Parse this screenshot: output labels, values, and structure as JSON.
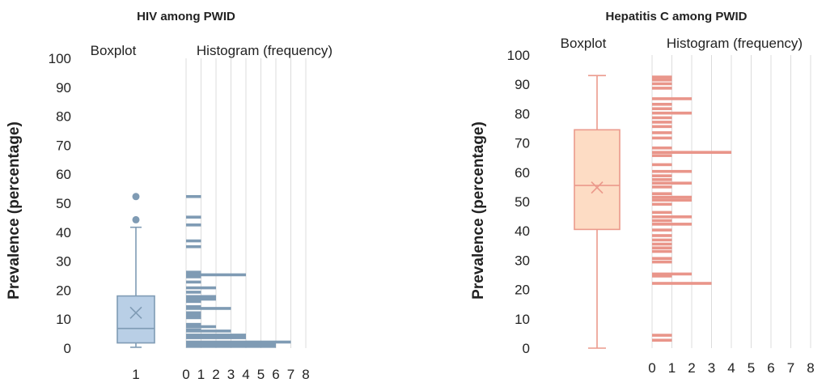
{
  "chart_data": [
    {
      "type": "box+histogram",
      "title": "HIV among PWID",
      "ylabel": "Prevalence (percentage)",
      "boxplot_label": "Boxplot",
      "histogram_label": "Histogram (frequency)",
      "ylim": [
        0,
        100
      ],
      "y_ticks": [
        "0",
        "10",
        "20",
        "30",
        "40",
        "50",
        "60",
        "70",
        "80",
        "90",
        "100"
      ],
      "box_x_tick": "1",
      "hist_x_ticks": [
        "0",
        "1",
        "2",
        "3",
        "4",
        "5",
        "6",
        "7",
        "8"
      ],
      "hist_xlim": [
        0,
        8
      ],
      "colors": {
        "box_fill": "#b9cfe6",
        "stroke": "#7f9bb4",
        "hist": "#7f9bb4"
      },
      "box": {
        "min": 0.3,
        "q1": 1.8,
        "median": 6.8,
        "q3": 18,
        "max": 41.7,
        "mean": 12.2,
        "outliers": [
          44.3,
          52.3
        ]
      },
      "histogram": [
        {
          "y": 52.3,
          "f": 1
        },
        {
          "y": 45.2,
          "f": 1
        },
        {
          "y": 42.5,
          "f": 1
        },
        {
          "y": 37,
          "f": 1
        },
        {
          "y": 35,
          "f": 1
        },
        {
          "y": 26.2,
          "f": 1
        },
        {
          "y": 25.3,
          "f": 4
        },
        {
          "y": 24.6,
          "f": 1
        },
        {
          "y": 22.8,
          "f": 1
        },
        {
          "y": 20.8,
          "f": 2
        },
        {
          "y": 19.3,
          "f": 1
        },
        {
          "y": 17.8,
          "f": 2
        },
        {
          "y": 16.9,
          "f": 2
        },
        {
          "y": 16.1,
          "f": 1
        },
        {
          "y": 14.3,
          "f": 1
        },
        {
          "y": 13.7,
          "f": 3
        },
        {
          "y": 12.2,
          "f": 1
        },
        {
          "y": 11.3,
          "f": 1
        },
        {
          "y": 10.5,
          "f": 1
        },
        {
          "y": 8.2,
          "f": 1
        },
        {
          "y": 7.4,
          "f": 2
        },
        {
          "y": 6.3,
          "f": 1
        },
        {
          "y": 5.9,
          "f": 3
        },
        {
          "y": 4.5,
          "f": 4
        },
        {
          "y": 3.6,
          "f": 4
        },
        {
          "y": 2.1,
          "f": 7
        },
        {
          "y": 1.2,
          "f": 6
        },
        {
          "y": 0.6,
          "f": 6
        }
      ]
    },
    {
      "type": "box+histogram",
      "title": "Hepatitis C among PWID",
      "ylabel": "Prevalence (percentage)",
      "boxplot_label": "Boxplot",
      "histogram_label": "Histogram (frequency)",
      "ylim": [
        0,
        100
      ],
      "y_ticks": [
        "0",
        "10",
        "20",
        "30",
        "40",
        "50",
        "60",
        "70",
        "80",
        "90",
        "100"
      ],
      "box_x_tick": "",
      "hist_x_ticks": [
        "0",
        "1",
        "2",
        "3",
        "4",
        "5",
        "6",
        "7",
        "8"
      ],
      "hist_xlim": [
        0,
        8
      ],
      "colors": {
        "box_fill": "#fddcc4",
        "stroke": "#eb9a8c",
        "hist": "#e9958a"
      },
      "box": {
        "min": 0,
        "q1": 40.5,
        "median": 55.5,
        "q3": 74.5,
        "max": 93,
        "mean": 54.8,
        "outliers": []
      },
      "histogram": [
        {
          "y": 92.5,
          "f": 1
        },
        {
          "y": 91.5,
          "f": 1
        },
        {
          "y": 90.2,
          "f": 1
        },
        {
          "y": 88.7,
          "f": 1
        },
        {
          "y": 85.1,
          "f": 2
        },
        {
          "y": 83.2,
          "f": 1
        },
        {
          "y": 81.7,
          "f": 1
        },
        {
          "y": 80.2,
          "f": 2
        },
        {
          "y": 78.6,
          "f": 1
        },
        {
          "y": 77.1,
          "f": 1
        },
        {
          "y": 75.6,
          "f": 1
        },
        {
          "y": 73.5,
          "f": 1
        },
        {
          "y": 71.7,
          "f": 1
        },
        {
          "y": 68.3,
          "f": 1
        },
        {
          "y": 66.8,
          "f": 4
        },
        {
          "y": 65.7,
          "f": 1
        },
        {
          "y": 62.6,
          "f": 1
        },
        {
          "y": 60.3,
          "f": 2
        },
        {
          "y": 58.8,
          "f": 1
        },
        {
          "y": 57.5,
          "f": 1
        },
        {
          "y": 56.3,
          "f": 2
        },
        {
          "y": 55,
          "f": 1
        },
        {
          "y": 52.7,
          "f": 1
        },
        {
          "y": 51.5,
          "f": 2
        },
        {
          "y": 50.5,
          "f": 2
        },
        {
          "y": 49.1,
          "f": 1
        },
        {
          "y": 46.3,
          "f": 1
        },
        {
          "y": 44.8,
          "f": 2
        },
        {
          "y": 43.5,
          "f": 1
        },
        {
          "y": 42.3,
          "f": 2
        },
        {
          "y": 40.3,
          "f": 1
        },
        {
          "y": 38.4,
          "f": 1
        },
        {
          "y": 36.9,
          "f": 1
        },
        {
          "y": 35.5,
          "f": 1
        },
        {
          "y": 34.2,
          "f": 1
        },
        {
          "y": 33,
          "f": 1
        },
        {
          "y": 30.6,
          "f": 1
        },
        {
          "y": 29.4,
          "f": 1
        },
        {
          "y": 25.3,
          "f": 2
        },
        {
          "y": 24.6,
          "f": 1
        },
        {
          "y": 22.1,
          "f": 3
        },
        {
          "y": 4.4,
          "f": 1
        },
        {
          "y": 2.7,
          "f": 1
        }
      ]
    }
  ]
}
